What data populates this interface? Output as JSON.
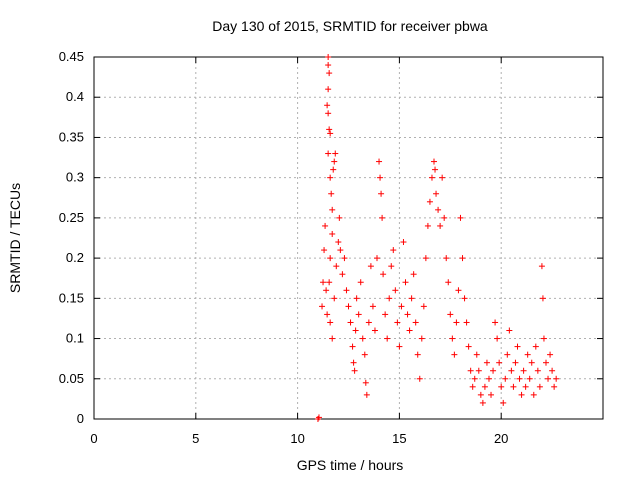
{
  "chart_data": {
    "type": "scatter",
    "title": "Day 130 of 2015, SRMTID for receiver pbwa",
    "xlabel": "GPS time / hours",
    "ylabel": "SRMTID / TECUs",
    "xlim": [
      0,
      25
    ],
    "ylim": [
      0,
      0.45
    ],
    "xticks": [
      0,
      5,
      10,
      15,
      20
    ],
    "yticks": [
      0,
      0.05,
      0.1,
      0.15,
      0.2,
      0.25,
      0.3,
      0.35,
      0.4,
      0.45
    ],
    "xtick_labels": [
      "0",
      "5",
      "10",
      "15",
      "20"
    ],
    "ytick_labels": [
      "0",
      "0.05",
      "0.1",
      "0.15",
      "0.2",
      "0.25",
      "0.3",
      "0.35",
      "0.4",
      "0.45"
    ],
    "grid": true,
    "marker": "+",
    "color": "#ff0000",
    "series": [
      {
        "name": "SRMTID",
        "points": [
          [
            11.0,
            0.0
          ],
          [
            11.05,
            0.002
          ],
          [
            11.2,
            0.14
          ],
          [
            11.25,
            0.17
          ],
          [
            11.3,
            0.21
          ],
          [
            11.35,
            0.24
          ],
          [
            11.4,
            0.16
          ],
          [
            11.45,
            0.13
          ],
          [
            11.5,
            0.45
          ],
          [
            11.5,
            0.44
          ],
          [
            11.55,
            0.43
          ],
          [
            11.5,
            0.41
          ],
          [
            11.45,
            0.39
          ],
          [
            11.5,
            0.38
          ],
          [
            11.55,
            0.36
          ],
          [
            11.6,
            0.355
          ],
          [
            11.5,
            0.33
          ],
          [
            11.6,
            0.3
          ],
          [
            11.65,
            0.28
          ],
          [
            11.7,
            0.26
          ],
          [
            11.75,
            0.31
          ],
          [
            11.8,
            0.32
          ],
          [
            11.85,
            0.33
          ],
          [
            11.7,
            0.23
          ],
          [
            11.6,
            0.2
          ],
          [
            11.55,
            0.17
          ],
          [
            11.6,
            0.12
          ],
          [
            11.7,
            0.1
          ],
          [
            11.8,
            0.15
          ],
          [
            11.9,
            0.19
          ],
          [
            12.0,
            0.22
          ],
          [
            12.05,
            0.25
          ],
          [
            12.1,
            0.21
          ],
          [
            12.2,
            0.18
          ],
          [
            12.3,
            0.2
          ],
          [
            12.4,
            0.16
          ],
          [
            12.5,
            0.14
          ],
          [
            12.6,
            0.12
          ],
          [
            12.7,
            0.09
          ],
          [
            12.75,
            0.07
          ],
          [
            12.8,
            0.06
          ],
          [
            12.85,
            0.11
          ],
          [
            12.9,
            0.15
          ],
          [
            13.0,
            0.13
          ],
          [
            13.1,
            0.17
          ],
          [
            13.2,
            0.1
          ],
          [
            13.3,
            0.08
          ],
          [
            13.35,
            0.045
          ],
          [
            13.4,
            0.03
          ],
          [
            13.5,
            0.12
          ],
          [
            13.6,
            0.19
          ],
          [
            13.7,
            0.14
          ],
          [
            13.8,
            0.11
          ],
          [
            13.9,
            0.2
          ],
          [
            14.0,
            0.32
          ],
          [
            14.05,
            0.3
          ],
          [
            14.1,
            0.28
          ],
          [
            14.15,
            0.25
          ],
          [
            14.2,
            0.18
          ],
          [
            14.3,
            0.13
          ],
          [
            14.4,
            0.1
          ],
          [
            14.5,
            0.15
          ],
          [
            14.6,
            0.19
          ],
          [
            14.7,
            0.21
          ],
          [
            14.8,
            0.16
          ],
          [
            14.9,
            0.12
          ],
          [
            15.0,
            0.09
          ],
          [
            15.1,
            0.14
          ],
          [
            15.2,
            0.22
          ],
          [
            15.3,
            0.17
          ],
          [
            15.4,
            0.13
          ],
          [
            15.5,
            0.11
          ],
          [
            15.6,
            0.15
          ],
          [
            15.7,
            0.18
          ],
          [
            15.8,
            0.12
          ],
          [
            15.9,
            0.08
          ],
          [
            16.0,
            0.05
          ],
          [
            16.1,
            0.1
          ],
          [
            16.2,
            0.14
          ],
          [
            16.3,
            0.2
          ],
          [
            16.4,
            0.24
          ],
          [
            16.5,
            0.27
          ],
          [
            16.6,
            0.3
          ],
          [
            16.7,
            0.32
          ],
          [
            16.75,
            0.31
          ],
          [
            16.8,
            0.28
          ],
          [
            16.9,
            0.26
          ],
          [
            17.0,
            0.24
          ],
          [
            17.1,
            0.3
          ],
          [
            17.2,
            0.25
          ],
          [
            17.3,
            0.2
          ],
          [
            17.4,
            0.17
          ],
          [
            17.5,
            0.13
          ],
          [
            17.6,
            0.1
          ],
          [
            17.7,
            0.08
          ],
          [
            17.8,
            0.12
          ],
          [
            17.9,
            0.16
          ],
          [
            18.0,
            0.25
          ],
          [
            18.1,
            0.2
          ],
          [
            18.2,
            0.15
          ],
          [
            18.3,
            0.12
          ],
          [
            18.4,
            0.09
          ],
          [
            18.5,
            0.06
          ],
          [
            18.6,
            0.04
          ],
          [
            18.7,
            0.05
          ],
          [
            18.8,
            0.08
          ],
          [
            18.9,
            0.06
          ],
          [
            19.0,
            0.03
          ],
          [
            19.1,
            0.02
          ],
          [
            19.2,
            0.04
          ],
          [
            19.3,
            0.07
          ],
          [
            19.4,
            0.05
          ],
          [
            19.5,
            0.03
          ],
          [
            19.6,
            0.06
          ],
          [
            19.7,
            0.12
          ],
          [
            19.8,
            0.1
          ],
          [
            19.9,
            0.07
          ],
          [
            20.0,
            0.04
          ],
          [
            20.1,
            0.02
          ],
          [
            20.2,
            0.05
          ],
          [
            20.3,
            0.08
          ],
          [
            20.4,
            0.11
          ],
          [
            20.5,
            0.06
          ],
          [
            20.6,
            0.04
          ],
          [
            20.7,
            0.07
          ],
          [
            20.8,
            0.09
          ],
          [
            20.9,
            0.05
          ],
          [
            21.0,
            0.03
          ],
          [
            21.1,
            0.06
          ],
          [
            21.2,
            0.04
          ],
          [
            21.3,
            0.08
          ],
          [
            21.4,
            0.05
          ],
          [
            21.5,
            0.07
          ],
          [
            21.6,
            0.03
          ],
          [
            21.7,
            0.09
          ],
          [
            21.8,
            0.06
          ],
          [
            21.9,
            0.04
          ],
          [
            22.0,
            0.19
          ],
          [
            22.05,
            0.15
          ],
          [
            22.1,
            0.1
          ],
          [
            22.2,
            0.07
          ],
          [
            22.3,
            0.05
          ],
          [
            22.4,
            0.08
          ],
          [
            22.5,
            0.06
          ],
          [
            22.6,
            0.04
          ],
          [
            22.7,
            0.05
          ]
        ]
      }
    ]
  }
}
